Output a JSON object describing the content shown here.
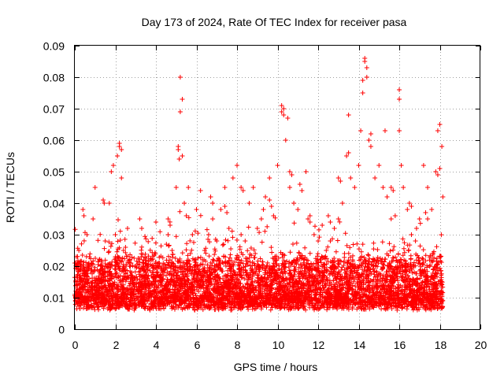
{
  "chart_data": {
    "type": "scatter",
    "title": "Day 173 of 2024, Rate Of TEC Index for receiver pasa",
    "xlabel": "GPS time / hours",
    "ylabel": "ROTI / TECUs",
    "xlim": [
      0,
      20
    ],
    "ylim": [
      0,
      0.09
    ],
    "x_ticks": [
      0,
      2,
      4,
      6,
      8,
      10,
      12,
      14,
      16,
      18,
      20
    ],
    "x_tick_labels": [
      "0",
      "2",
      "4",
      "6",
      "8",
      "10",
      "12",
      "14",
      "16",
      "18",
      "20"
    ],
    "y_ticks": [
      0,
      0.01,
      0.02,
      0.03,
      0.04,
      0.05,
      0.06,
      0.07,
      0.08,
      0.09
    ],
    "y_tick_labels": [
      "0",
      "0.01",
      "0.02",
      "0.03",
      "0.04",
      "0.05",
      "0.06",
      "0.07",
      "0.08",
      "0.09"
    ],
    "grid": true,
    "marker": "+",
    "series": [
      {
        "name": "ROTI",
        "color": "#ff0000",
        "x": [
          0.1,
          0.2,
          0.3,
          0.5,
          0.6,
          0.8,
          0.9,
          1.0,
          1.1,
          1.3,
          1.5,
          1.7,
          1.8,
          1.9,
          2.0,
          2.1,
          2.2,
          2.3,
          2.4,
          2.6,
          2.8,
          3.0,
          3.2,
          3.4,
          3.6,
          3.8,
          4.0,
          4.2,
          4.4,
          4.6,
          4.8,
          5.0,
          5.1,
          5.2,
          5.3,
          5.4,
          5.5,
          5.6,
          5.8,
          6.0,
          6.2,
          6.4,
          6.6,
          6.8,
          7.0,
          7.2,
          7.4,
          7.6,
          7.8,
          8.0,
          8.2,
          8.4,
          8.6,
          8.8,
          9.0,
          9.2,
          9.4,
          9.6,
          9.8,
          10.0,
          10.2,
          10.3,
          10.4,
          10.5,
          10.6,
          10.8,
          11.0,
          11.2,
          11.4,
          11.6,
          11.8,
          12.0,
          12.2,
          12.4,
          12.6,
          12.8,
          13.0,
          13.2,
          13.4,
          13.5,
          13.6,
          13.8,
          14.0,
          14.1,
          14.2,
          14.3,
          14.4,
          14.5,
          14.6,
          14.8,
          15.0,
          15.2,
          15.4,
          15.6,
          15.8,
          16.0,
          16.1,
          16.2,
          16.4,
          16.6,
          16.8,
          17.0,
          17.2,
          17.4,
          17.6,
          17.8,
          17.9,
          18.0,
          18.1,
          18.15,
          5.2,
          5.3,
          10.2,
          10.3,
          14.3,
          14.4,
          14.2,
          16.0,
          17.9,
          18.0,
          2.2,
          2.3,
          13.5,
          14.6,
          15.3,
          16.0,
          5.1,
          5.15,
          9.3,
          11.1,
          4.6,
          4.7,
          6.7,
          6.8,
          12.5,
          12.6,
          3.2,
          3.3,
          8.2,
          8.3,
          9.6,
          9.7,
          10.6,
          10.7,
          13.0,
          13.1,
          15.6,
          15.7,
          16.5,
          16.6,
          17.3,
          17.4,
          0.4,
          0.45,
          1.4,
          1.45,
          7.4,
          7.5,
          11.5,
          11.6,
          0.05,
          0.15,
          0.25,
          0.35,
          0.7,
          1.2,
          1.6,
          2.5,
          2.7,
          2.9,
          3.1,
          3.5,
          3.7,
          3.9,
          4.1,
          4.3,
          4.5,
          4.9,
          5.7,
          5.9,
          6.1,
          6.3,
          6.5,
          6.9,
          7.1,
          7.3,
          7.7,
          7.9,
          8.1,
          8.5,
          8.7,
          8.9,
          9.1,
          9.5,
          9.9,
          10.1,
          10.9,
          11.3,
          11.7,
          11.9,
          12.1,
          12.3,
          12.7,
          12.9,
          13.3,
          13.7,
          13.9,
          14.7,
          14.9,
          15.1,
          15.5,
          15.9,
          16.3,
          16.7,
          16.9,
          17.1,
          17.5,
          17.7,
          18.05
        ],
        "y": [
          0.012,
          0.025,
          0.011,
          0.018,
          0.03,
          0.009,
          0.035,
          0.045,
          0.014,
          0.02,
          0.028,
          0.04,
          0.05,
          0.052,
          0.03,
          0.055,
          0.058,
          0.048,
          0.025,
          0.032,
          0.018,
          0.012,
          0.015,
          0.02,
          0.016,
          0.022,
          0.034,
          0.02,
          0.018,
          0.03,
          0.025,
          0.045,
          0.057,
          0.069,
          0.055,
          0.04,
          0.036,
          0.045,
          0.03,
          0.038,
          0.044,
          0.025,
          0.03,
          0.035,
          0.028,
          0.038,
          0.045,
          0.032,
          0.048,
          0.052,
          0.03,
          0.028,
          0.04,
          0.045,
          0.032,
          0.035,
          0.042,
          0.048,
          0.036,
          0.052,
          0.069,
          0.068,
          0.06,
          0.067,
          0.045,
          0.04,
          0.038,
          0.044,
          0.05,
          0.036,
          0.03,
          0.028,
          0.033,
          0.025,
          0.028,
          0.032,
          0.035,
          0.04,
          0.055,
          0.056,
          0.048,
          0.045,
          0.052,
          0.063,
          0.079,
          0.085,
          0.08,
          0.06,
          0.058,
          0.048,
          0.052,
          0.045,
          0.042,
          0.035,
          0.036,
          0.063,
          0.052,
          0.045,
          0.038,
          0.03,
          0.028,
          0.035,
          0.052,
          0.045,
          0.038,
          0.05,
          0.063,
          0.065,
          0.058,
          0.042,
          0.08,
          0.073,
          0.071,
          0.07,
          0.086,
          0.083,
          0.075,
          0.076,
          0.049,
          0.051,
          0.059,
          0.057,
          0.068,
          0.062,
          0.063,
          0.073,
          0.058,
          0.054,
          0.038,
          0.046,
          0.035,
          0.033,
          0.042,
          0.04,
          0.036,
          0.034,
          0.035,
          0.032,
          0.045,
          0.044,
          0.041,
          0.039,
          0.05,
          0.049,
          0.048,
          0.047,
          0.045,
          0.044,
          0.04,
          0.039,
          0.037,
          0.035,
          0.038,
          0.036,
          0.041,
          0.04,
          0.039,
          0.037,
          0.035,
          0.034,
          0.015,
          0.02,
          0.008,
          0.012,
          0.016,
          0.022,
          0.018,
          0.026,
          0.02,
          0.014,
          0.01,
          0.018,
          0.022,
          0.016,
          0.012,
          0.02,
          0.014,
          0.018,
          0.024,
          0.02,
          0.015,
          0.022,
          0.018,
          0.012,
          0.02,
          0.016,
          0.019,
          0.014,
          0.022,
          0.018,
          0.016,
          0.024,
          0.02,
          0.018,
          0.022,
          0.015,
          0.019,
          0.017,
          0.02,
          0.014,
          0.022,
          0.018,
          0.02,
          0.016,
          0.024,
          0.022,
          0.018,
          0.02,
          0.022,
          0.016,
          0.02,
          0.018,
          0.014,
          0.02,
          0.016,
          0.018,
          0.012,
          0.016,
          0.015
        ]
      }
    ]
  }
}
